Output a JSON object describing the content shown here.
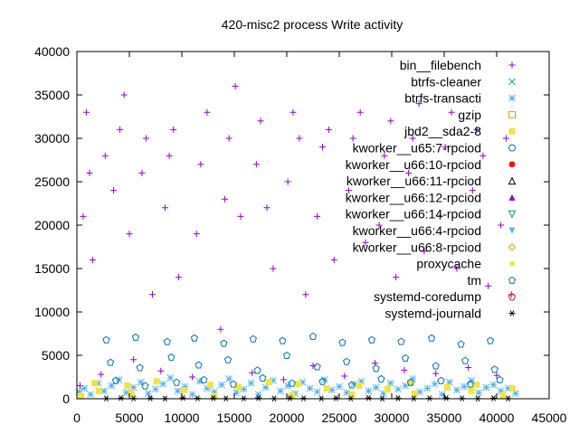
{
  "chart_data": {
    "type": "scatter",
    "title": "420-misc2 process Write activity",
    "xlabel": "",
    "ylabel": "",
    "xlim": [
      0,
      45000
    ],
    "ylim": [
      0,
      40000
    ],
    "xticks": [
      0,
      5000,
      10000,
      15000,
      20000,
      25000,
      30000,
      35000,
      40000,
      45000
    ],
    "yticks": [
      0,
      5000,
      10000,
      15000,
      20000,
      25000,
      30000,
      35000,
      40000
    ],
    "grid": false,
    "legend_position": "top-right",
    "series": [
      {
        "name": "bin__filebench",
        "color": "#9400d3",
        "marker": "plus",
        "x": [
          300,
          600,
          900,
          1200,
          1500,
          2300,
          2700,
          3500,
          4100,
          4500,
          5000,
          5400,
          6200,
          6600,
          7200,
          8000,
          8400,
          8800,
          9200,
          9700,
          11000,
          11400,
          11800,
          12400,
          13700,
          14100,
          14500,
          15100,
          15600,
          16700,
          17100,
          17500,
          18100,
          18700,
          19700,
          20100,
          20600,
          21200,
          21800,
          22500,
          22900,
          23400,
          24000,
          24500,
          25500,
          25900,
          26300,
          27000,
          27500,
          28400,
          28800,
          29300,
          29900,
          30400,
          31200,
          31600,
          32000,
          32600,
          33100,
          34200,
          34600,
          35100,
          35700,
          36200,
          37300,
          37700,
          38100,
          38700,
          39200,
          40000,
          40400,
          40900,
          41400
        ],
        "y": [
          1500,
          21000,
          33000,
          26000,
          16000,
          2800,
          28000,
          24000,
          31000,
          35000,
          19000,
          4500,
          26000,
          30000,
          12000,
          3200,
          22000,
          28000,
          31000,
          14000,
          2500,
          19000,
          27000,
          33000,
          8000,
          23000,
          30000,
          36000,
          21000,
          3000,
          27000,
          32000,
          22000,
          15000,
          2200,
          25000,
          33000,
          30000,
          12000,
          3800,
          21000,
          29000,
          31000,
          16000,
          2600,
          24000,
          30000,
          33000,
          18000,
          4100,
          20000,
          28000,
          32000,
          14000,
          3300,
          26000,
          30000,
          34000,
          17000,
          2900,
          21000,
          29000,
          33000,
          15000,
          3600,
          24000,
          31000,
          28000,
          13000,
          2700,
          20000,
          30000,
          12000
        ]
      },
      {
        "name": "btrfs-cleaner",
        "color": "#009e73",
        "marker": "cross",
        "x": [],
        "y": []
      },
      {
        "name": "btrfs-transacti",
        "color": "#56b4e9",
        "marker": "star",
        "x": [
          200,
          700,
          1300,
          2000,
          2600,
          3300,
          4000,
          4700,
          5400,
          6100,
          6800,
          7500,
          8200,
          8900,
          9600,
          10300,
          11000,
          11700,
          12400,
          13100,
          13800,
          14500,
          15200,
          15900,
          16600,
          17300,
          18000,
          18700,
          19400,
          20100,
          20800,
          21500,
          22200,
          22900,
          23600,
          24300,
          25000,
          25700,
          26400,
          27100,
          27800,
          28500,
          29200,
          29900,
          30600,
          31300,
          32000,
          32700,
          33400,
          34100,
          34800,
          35500,
          36200,
          36900,
          37600,
          38300,
          39000,
          39700,
          40400,
          41100,
          41800
        ],
        "y": [
          800,
          1200,
          500,
          1800,
          900,
          1500,
          2200,
          700,
          1300,
          1900,
          600,
          1100,
          1700,
          2400,
          900,
          1400,
          500,
          2000,
          1200,
          800,
          1600,
          2300,
          700,
          1100,
          1800,
          500,
          1300,
          2100,
          900,
          1500,
          600,
          1900,
          1200,
          800,
          2200,
          1000,
          1400,
          700,
          1700,
          2000,
          900,
          1300,
          600,
          1800,
          1100,
          1500,
          2300,
          800,
          1200,
          1700,
          500,
          1900,
          1000,
          1400,
          2100,
          700,
          1300,
          1600,
          900,
          1200,
          600
        ]
      },
      {
        "name": "gzip",
        "color": "#e69f00",
        "marker": "open-square",
        "x": [],
        "y": []
      },
      {
        "name": "jbd2__sda2-8",
        "color": "#f0e442",
        "marker": "filled-square",
        "x": [
          400,
          1700,
          2100,
          4800,
          5200,
          7600,
          10200,
          12700,
          13100,
          15400,
          18300,
          20500,
          21100,
          23800,
          26200,
          26900,
          29600,
          31800,
          32200,
          35300,
          37600,
          38100,
          40600,
          41500
        ],
        "y": [
          300,
          1800,
          900,
          1500,
          600,
          2000,
          1000,
          1600,
          300,
          1300,
          1900,
          400,
          1700,
          1200,
          500,
          1500,
          1100,
          1800,
          600,
          1300,
          900,
          1600,
          400,
          1200
        ]
      },
      {
        "name": "kworker__u65:7-rpciod",
        "color": "#0072b2",
        "marker": "open-circle",
        "x": [],
        "y": []
      },
      {
        "name": "kworker__u66:10-rpciod",
        "color": "#e51e10",
        "marker": "filled-circle",
        "x": [],
        "y": []
      },
      {
        "name": "kworker__u66:11-rpciod",
        "color": "#000000",
        "marker": "open-triangle",
        "x": [],
        "y": []
      },
      {
        "name": "kworker__u66:12-rpciod",
        "color": "#9400d3",
        "marker": "filled-triangle",
        "x": [],
        "y": []
      },
      {
        "name": "kworker__u66:14-rpciod",
        "color": "#009e73",
        "marker": "open-down-triangle",
        "x": [],
        "y": []
      },
      {
        "name": "kworker__u66:4-rpciod",
        "color": "#56b4e9",
        "marker": "filled-down-triangle",
        "x": [],
        "y": []
      },
      {
        "name": "kworker__u66:8-rpciod",
        "color": "#e69f00",
        "marker": "open-diamond",
        "x": [],
        "y": []
      },
      {
        "name": "proxycache",
        "color": "#f0e442",
        "marker": "filled-diamond",
        "x": [],
        "y": []
      },
      {
        "name": "tm",
        "color": "#0072b2",
        "marker": "open-pentagon",
        "x": [
          2800,
          3200,
          3700,
          5600,
          6000,
          6500,
          8600,
          9000,
          9500,
          11200,
          11600,
          12100,
          14000,
          14400,
          14900,
          16800,
          17200,
          17700,
          19600,
          20000,
          20500,
          22500,
          22900,
          23400,
          25300,
          25700,
          26200,
          28100,
          28500,
          29000,
          30900,
          31300,
          31800,
          33800,
          34200,
          34700,
          36600,
          37000,
          37500,
          39400,
          39800,
          40300
        ],
        "y": [
          6800,
          4200,
          2100,
          7100,
          3600,
          1500,
          6600,
          4800,
          1900,
          7000,
          3900,
          2200,
          6400,
          4500,
          1700,
          6900,
          3300,
          2400,
          6700,
          5000,
          1800,
          7200,
          3700,
          2000,
          6500,
          4300,
          1600,
          6800,
          3500,
          2300,
          6600,
          4700,
          1900,
          7000,
          3800,
          2100,
          6300,
          4400,
          1700,
          6700,
          3400,
          2200
        ]
      },
      {
        "name": "systemd-coredump",
        "color": "#e51e10",
        "marker": "open-pentagon",
        "x": [],
        "y": []
      },
      {
        "name": "systemd-journald",
        "color": "#000000",
        "marker": "asterisk",
        "x": [
          2800,
          4200,
          5400,
          7000,
          8400,
          10100,
          11500,
          13000,
          14200,
          15900,
          17300,
          18800,
          20300,
          21600,
          23300,
          24700,
          26100,
          27800,
          29100,
          30600,
          32100,
          33600,
          35200,
          36700,
          38200,
          39700,
          41100
        ],
        "y": [
          30,
          80,
          40,
          60,
          20,
          90,
          50,
          70,
          30,
          40,
          80,
          20,
          60,
          50,
          30,
          70,
          40,
          90,
          20,
          60,
          30,
          50,
          80,
          40,
          20,
          60,
          30
        ]
      }
    ]
  }
}
